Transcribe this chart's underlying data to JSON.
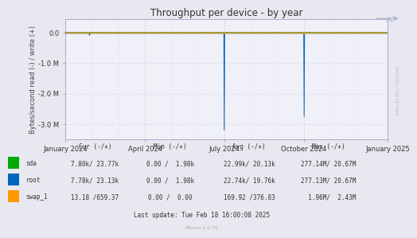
{
  "title": "Throughput per device - by year",
  "ylabel": "Bytes/second read (-) / write (+)",
  "bg_color": "#e8e8f0",
  "plot_bg_color": "#f0f0f8",
  "grid_color": "#ddddee",
  "grid_color_red": "#eecccc",
  "ylim_min": -3500000.0,
  "ylim_max": 450000.0,
  "yticks": [
    0.0,
    -1000000.0,
    -2000000.0,
    -3000000.0
  ],
  "ytick_labels": [
    "0.0",
    "-1.0 M",
    "-2.0 M",
    "-3.0 M"
  ],
  "xtick_positions": [
    0.0,
    0.247,
    0.493,
    0.74,
    1.0
  ],
  "xtick_labels": [
    "January 2024",
    "April 2024",
    "July 2024",
    "October 2024",
    "January 2025"
  ],
  "legend_rows": [
    {
      "name": "sda",
      "color": "#00aa00",
      "cur": "7.80k/ 23.77k",
      "min": "0.00 /  1.98k",
      "avg": "22.99k/ 20.13k",
      "max": "277.14M/ 20.67M"
    },
    {
      "name": "root",
      "color": "#0066bb",
      "cur": "7.78k/ 23.13k",
      "min": "0.00 /  1.98k",
      "avg": "22.74k/ 19.76k",
      "max": "277.13M/ 20.67M"
    },
    {
      "name": "swap_1",
      "color": "#ff9900",
      "cur": "13.18 /659.37",
      "min": "0.00 /  0.00",
      "avg": "169.92 /376.83",
      "max": "  1.96M/  2.43M"
    }
  ],
  "last_update": "Last update: Tue Feb 18 16:00:08 2025",
  "munin_version": "Munin 2.0.75",
  "right_label": "RRDTOOL/ TOBI OETIKER"
}
